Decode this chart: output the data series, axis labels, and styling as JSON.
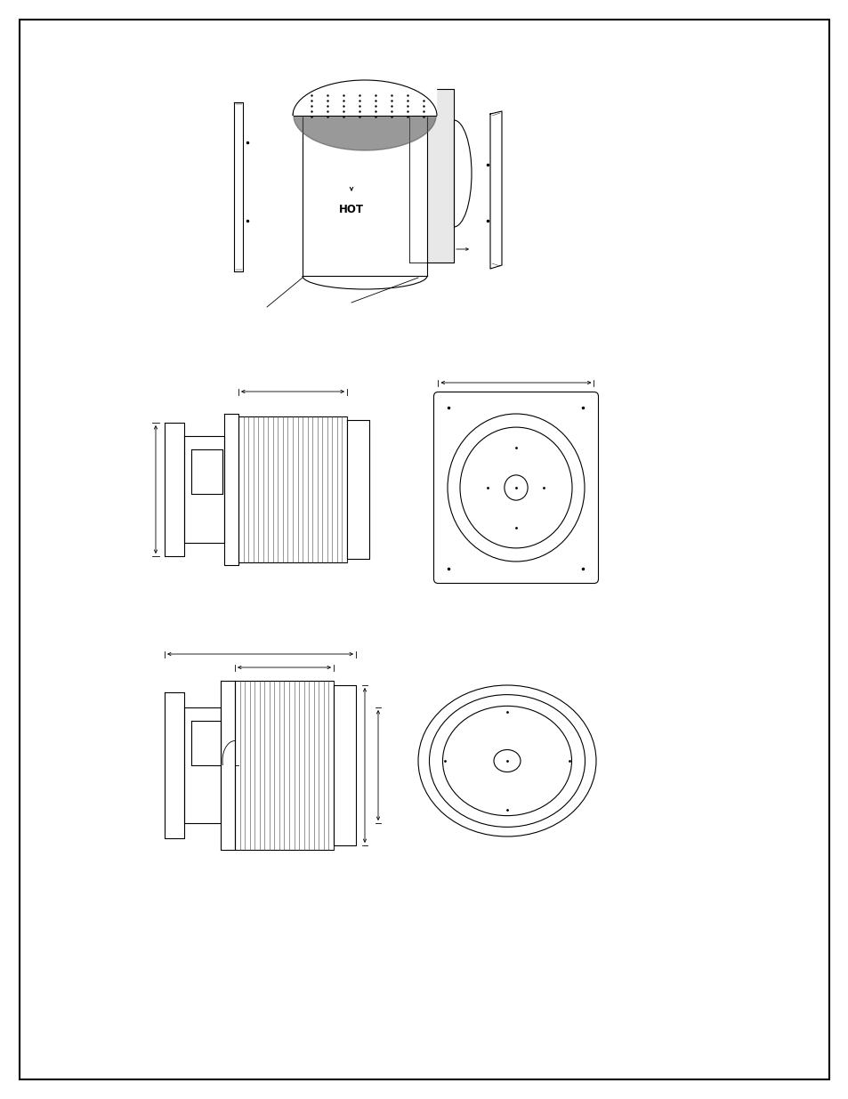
{
  "page_bg": "#ffffff",
  "line_color": "#000000",
  "lw": 0.8,
  "tlw": 0.6,
  "page_width": 9.54,
  "page_height": 12.35
}
